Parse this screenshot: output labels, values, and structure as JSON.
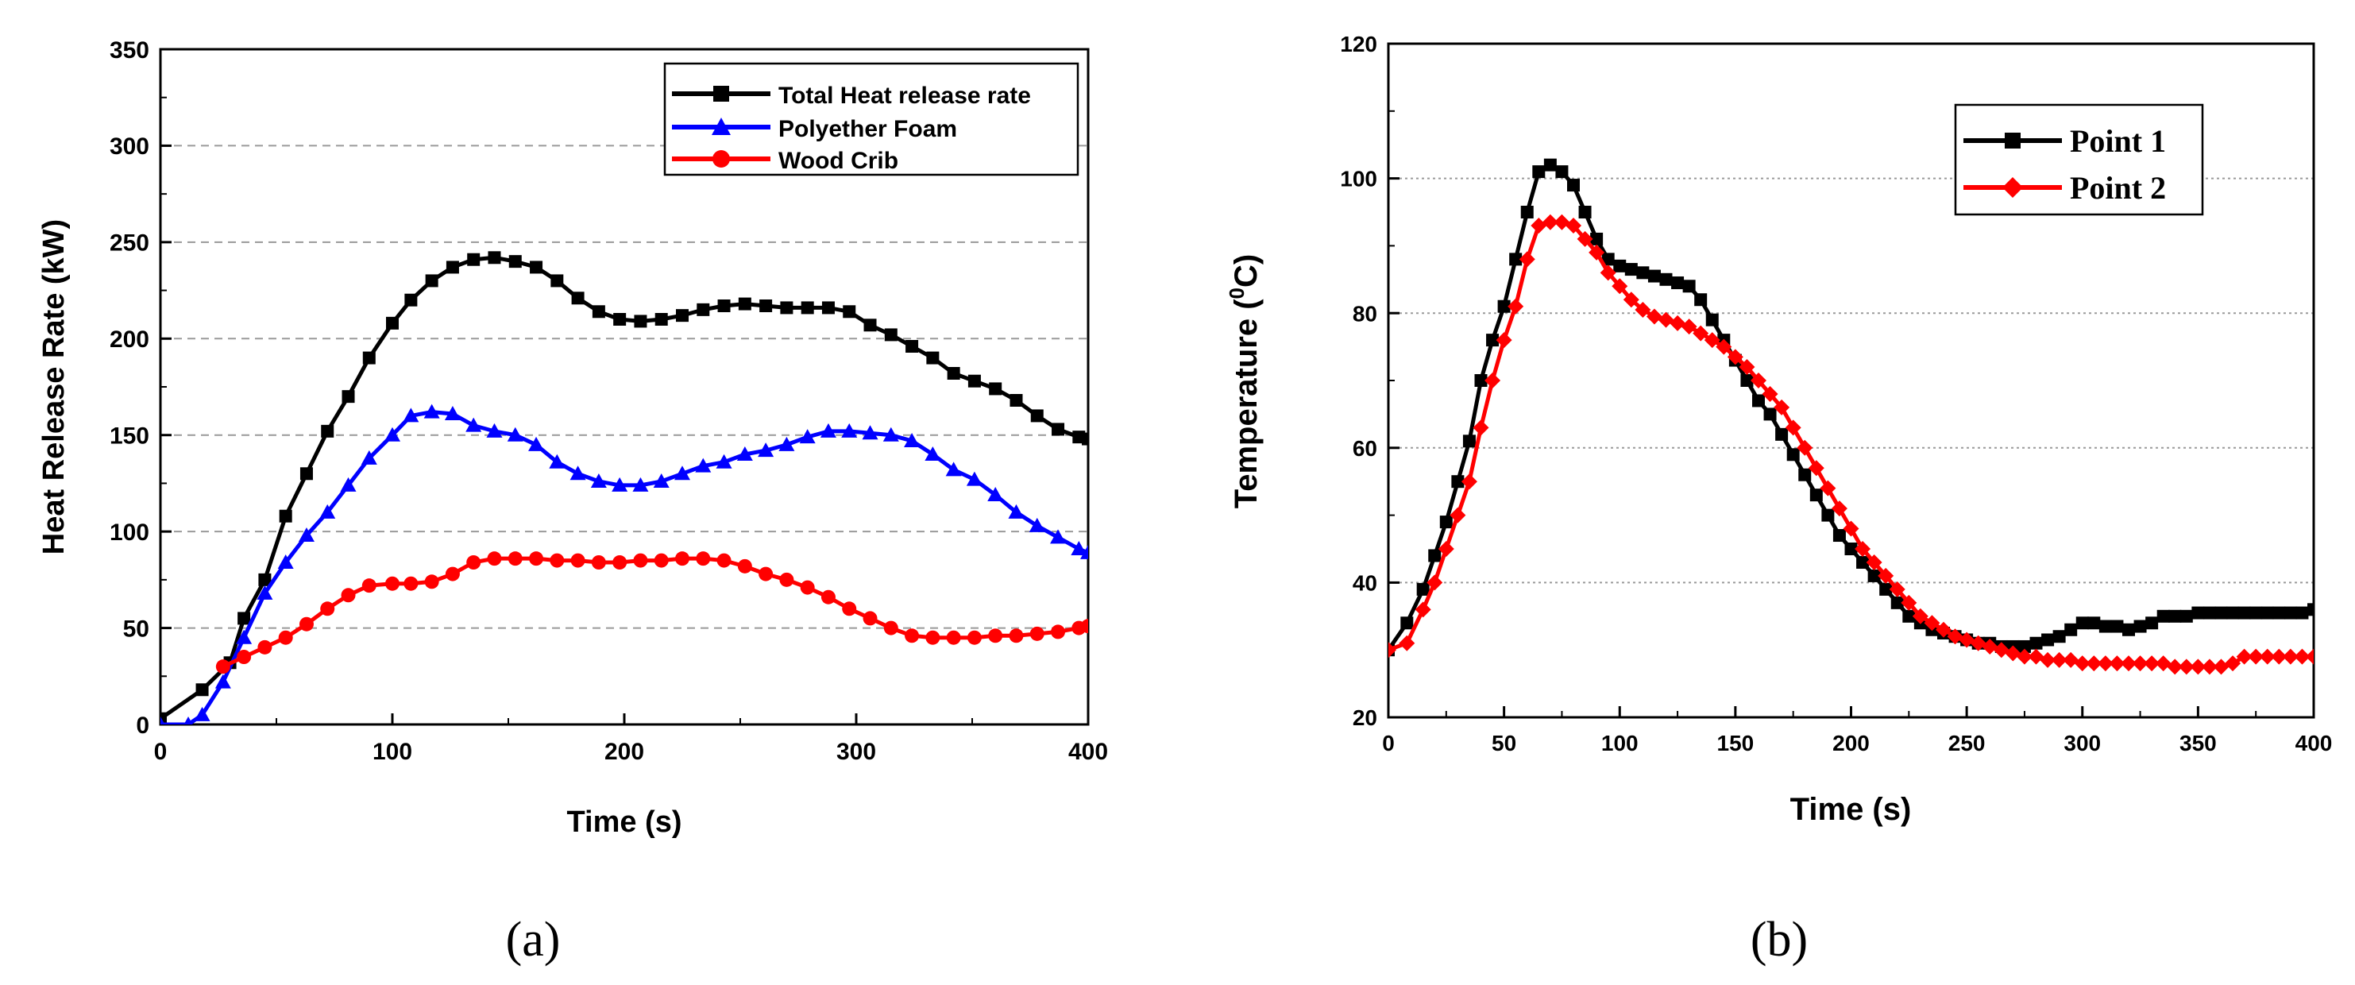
{
  "chart_data": [
    {
      "id": "a",
      "type": "line",
      "caption": "(a)",
      "title": "",
      "xlabel": "Time (s)",
      "ylabel": "Heat Release Rate (kW)",
      "xlim": [
        0,
        400
      ],
      "ylim": [
        0,
        350
      ],
      "x_ticks": [
        0,
        100,
        200,
        300,
        400
      ],
      "y_ticks": [
        0,
        50,
        100,
        150,
        200,
        250,
        300,
        350
      ],
      "grid": "horizontal dashed",
      "legend_position": "top-right",
      "series": [
        {
          "name": "Total Heat release rate",
          "color": "#000000",
          "marker": "square",
          "x": [
            0,
            18,
            30,
            36,
            45,
            54,
            63,
            72,
            81,
            90,
            100,
            108,
            117,
            126,
            135,
            144,
            153,
            162,
            171,
            180,
            189,
            198,
            207,
            216,
            225,
            234,
            243,
            252,
            261,
            270,
            279,
            288,
            297,
            306,
            315,
            324,
            333,
            342,
            351,
            360,
            369,
            378,
            387,
            396,
            400
          ],
          "y": [
            3,
            18,
            32,
            55,
            75,
            108,
            130,
            152,
            170,
            190,
            208,
            220,
            230,
            237,
            241,
            242,
            240,
            237,
            230,
            221,
            214,
            210,
            209,
            210,
            212,
            215,
            217,
            218,
            217,
            216,
            216,
            216,
            214,
            207,
            202,
            196,
            190,
            182,
            178,
            174,
            168,
            160,
            153,
            149,
            148
          ]
        },
        {
          "name": "Polyether Foam",
          "color": "#0000ff",
          "marker": "triangle",
          "x": [
            0,
            12,
            18,
            27,
            36,
            45,
            54,
            63,
            72,
            81,
            90,
            100,
            108,
            117,
            126,
            135,
            144,
            153,
            162,
            171,
            180,
            189,
            198,
            207,
            216,
            225,
            234,
            243,
            252,
            261,
            270,
            279,
            288,
            297,
            306,
            315,
            324,
            333,
            342,
            351,
            360,
            369,
            378,
            387,
            396,
            400
          ],
          "y": [
            0,
            0,
            5,
            22,
            45,
            68,
            84,
            98,
            110,
            124,
            138,
            150,
            160,
            162,
            161,
            155,
            152,
            150,
            145,
            136,
            130,
            126,
            124,
            124,
            126,
            130,
            134,
            136,
            140,
            142,
            145,
            149,
            152,
            152,
            151,
            150,
            147,
            140,
            132,
            127,
            119,
            110,
            103,
            97,
            91,
            89
          ]
        },
        {
          "name": "Wood Crib",
          "color": "#ff0000",
          "marker": "circle",
          "x": [
            27,
            36,
            45,
            54,
            63,
            72,
            81,
            90,
            100,
            108,
            117,
            126,
            135,
            144,
            153,
            162,
            171,
            180,
            189,
            198,
            207,
            216,
            225,
            234,
            243,
            252,
            261,
            270,
            279,
            288,
            297,
            306,
            315,
            324,
            333,
            342,
            351,
            360,
            369,
            378,
            387,
            396,
            400
          ],
          "y": [
            30,
            35,
            40,
            45,
            52,
            60,
            67,
            72,
            73,
            73,
            74,
            78,
            84,
            86,
            86,
            86,
            85,
            85,
            84,
            84,
            85,
            85,
            86,
            86,
            85,
            82,
            78,
            75,
            71,
            66,
            60,
            55,
            50,
            46,
            45,
            45,
            45,
            46,
            46,
            47,
            48,
            50,
            51
          ]
        }
      ]
    },
    {
      "id": "b",
      "type": "line",
      "caption": "(b)",
      "title": "",
      "xlabel": "Time (s)",
      "ylabel": "Temperature (",
      "ylabel_sup": "0",
      "ylabel_suffix": "C)",
      "xlim": [
        0,
        400
      ],
      "ylim": [
        20,
        120
      ],
      "x_ticks": [
        0,
        50,
        100,
        150,
        200,
        250,
        300,
        350,
        400
      ],
      "y_ticks": [
        20,
        40,
        60,
        80,
        100,
        120
      ],
      "grid": "horizontal dotted",
      "legend_position": "top-right",
      "series": [
        {
          "name": "Point 1",
          "color": "#000000",
          "marker": "square",
          "x": [
            0,
            8,
            15,
            20,
            25,
            30,
            35,
            40,
            45,
            50,
            55,
            60,
            65,
            70,
            75,
            80,
            85,
            90,
            95,
            100,
            105,
            110,
            115,
            120,
            125,
            130,
            135,
            140,
            145,
            150,
            155,
            160,
            165,
            170,
            175,
            180,
            185,
            190,
            195,
            200,
            205,
            210,
            215,
            220,
            225,
            230,
            235,
            240,
            245,
            250,
            255,
            260,
            265,
            270,
            275,
            280,
            285,
            290,
            295,
            300,
            305,
            310,
            315,
            320,
            325,
            330,
            335,
            340,
            345,
            350,
            355,
            360,
            365,
            370,
            375,
            380,
            385,
            390,
            395,
            400
          ],
          "y": [
            30,
            34,
            39,
            44,
            49,
            55,
            61,
            70,
            76,
            81,
            88,
            95,
            101,
            102,
            101,
            99,
            95,
            91,
            88,
            87,
            86.5,
            86,
            85.5,
            85,
            84.5,
            84,
            82,
            79,
            76,
            73,
            70,
            67,
            65,
            62,
            59,
            56,
            53,
            50,
            47,
            45,
            43,
            41,
            39,
            37,
            35,
            34,
            33,
            32.5,
            32,
            31.5,
            31,
            31,
            30.5,
            30.5,
            30.5,
            31,
            31.5,
            32,
            33,
            34,
            34,
            33.5,
            33.5,
            33,
            33.5,
            34,
            35,
            35,
            35,
            35.5,
            35.5,
            35.5,
            35.5,
            35.5,
            35.5,
            35.5,
            35.5,
            35.5,
            35.5,
            36
          ]
        },
        {
          "name": "Point 2",
          "color": "#ff0000",
          "marker": "diamond",
          "x": [
            0,
            8,
            15,
            20,
            25,
            30,
            35,
            40,
            45,
            50,
            55,
            60,
            65,
            70,
            75,
            80,
            85,
            90,
            95,
            100,
            105,
            110,
            115,
            120,
            125,
            130,
            135,
            140,
            145,
            150,
            155,
            160,
            165,
            170,
            175,
            180,
            185,
            190,
            195,
            200,
            205,
            210,
            215,
            220,
            225,
            230,
            235,
            240,
            245,
            250,
            255,
            260,
            265,
            270,
            275,
            280,
            285,
            290,
            295,
            300,
            305,
            310,
            315,
            320,
            325,
            330,
            335,
            340,
            345,
            350,
            355,
            360,
            365,
            370,
            375,
            380,
            385,
            390,
            395,
            400
          ],
          "y": [
            30,
            31,
            36,
            40,
            45,
            50,
            55,
            63,
            70,
            76,
            81,
            88,
            93,
            93.5,
            93.5,
            93,
            91,
            89,
            86,
            84,
            82,
            80.5,
            79.5,
            79,
            78.5,
            78,
            77,
            76,
            75,
            73.5,
            72,
            70,
            68,
            66,
            63,
            60,
            57,
            54,
            51,
            48,
            45,
            43,
            41,
            39,
            37,
            35,
            34,
            33,
            32,
            31.5,
            31,
            30.5,
            30,
            29.5,
            29,
            29,
            28.5,
            28.5,
            28.5,
            28,
            28,
            28,
            28,
            28,
            28,
            28,
            28,
            27.5,
            27.5,
            27.5,
            27.5,
            27.5,
            28,
            29,
            29,
            29,
            29,
            29,
            29,
            29
          ]
        }
      ]
    }
  ]
}
